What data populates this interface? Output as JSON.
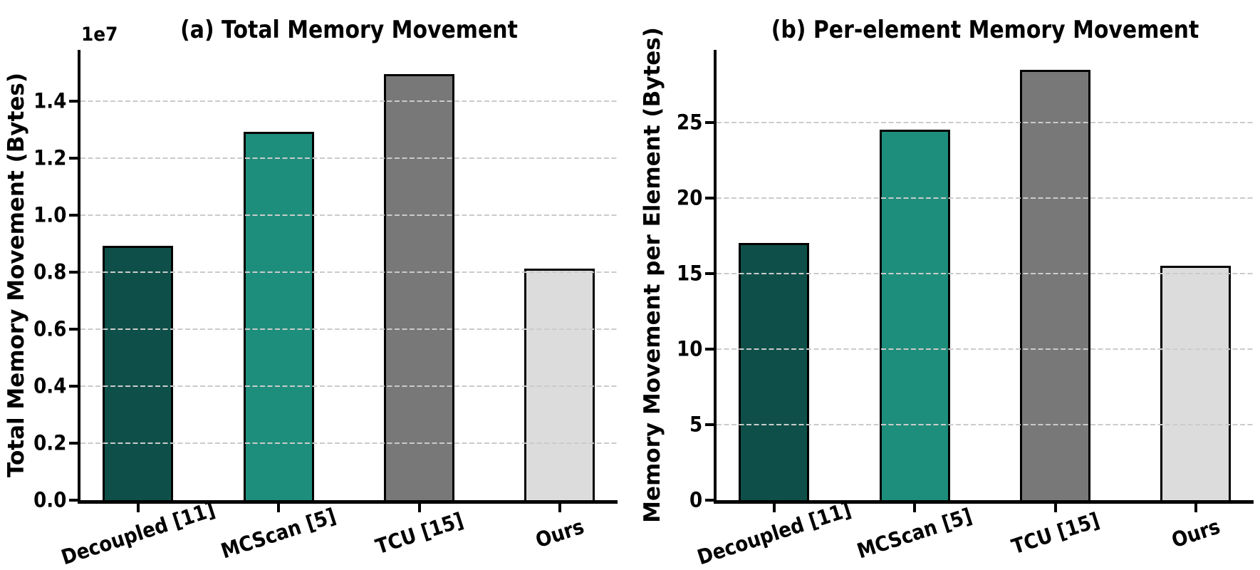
{
  "figure": {
    "background_color": "#ffffff",
    "text_color": "#000000",
    "grid_color": "#cbcbcb",
    "bar_edge_color": "#000000"
  },
  "chart_data": [
    {
      "type": "bar",
      "title": "(a) Total Memory Movement",
      "ylabel": "Total Memory Movement (Bytes)",
      "xlabel": "",
      "axis_offset_text": "1e7",
      "categories": [
        "Decoupled [11]",
        "MCScan [5]",
        "TCU [15]",
        "Ours"
      ],
      "values": [
        8925000,
        12925000,
        14950000,
        8125000
      ],
      "plot_values": [
        0.8925,
        1.2925,
        1.495,
        0.8125
      ],
      "value_unit": "1e7 Bytes",
      "ytick_values": [
        0,
        0.2,
        0.4,
        0.6,
        0.8,
        1.0,
        1.2,
        1.4
      ],
      "ytick_labels": [
        "0.0",
        "0.2",
        "0.4",
        "0.6",
        "0.8",
        "1.0",
        "1.2",
        "1.4"
      ],
      "ylim": [
        0,
        1.58
      ],
      "grid": "horizontal dashed, drawn above bars",
      "legend": "none",
      "bar_colors": [
        "#0e5049",
        "#1e8e7c",
        "#787878",
        "#dcdcdc"
      ]
    },
    {
      "type": "bar",
      "title": "(b) Per-element Memory Movement",
      "ylabel": "Memory Movement per Element (Bytes)",
      "xlabel": "",
      "axis_offset_text": "",
      "categories": [
        "Decoupled [11]",
        "MCScan [5]",
        "TCU [15]",
        "Ours"
      ],
      "values": [
        17.0,
        24.5,
        28.5,
        15.5
      ],
      "plot_values": [
        17.0,
        24.5,
        28.5,
        15.5
      ],
      "value_unit": "Bytes",
      "ytick_values": [
        0,
        5,
        10,
        15,
        20,
        25
      ],
      "ytick_labels": [
        "0",
        "5",
        "10",
        "15",
        "20",
        "25"
      ],
      "ylim": [
        0,
        29.8
      ],
      "grid": "horizontal dashed, drawn above bars",
      "legend": "none",
      "bar_colors": [
        "#0e5049",
        "#1e8e7c",
        "#787878",
        "#dcdcdc"
      ]
    }
  ]
}
